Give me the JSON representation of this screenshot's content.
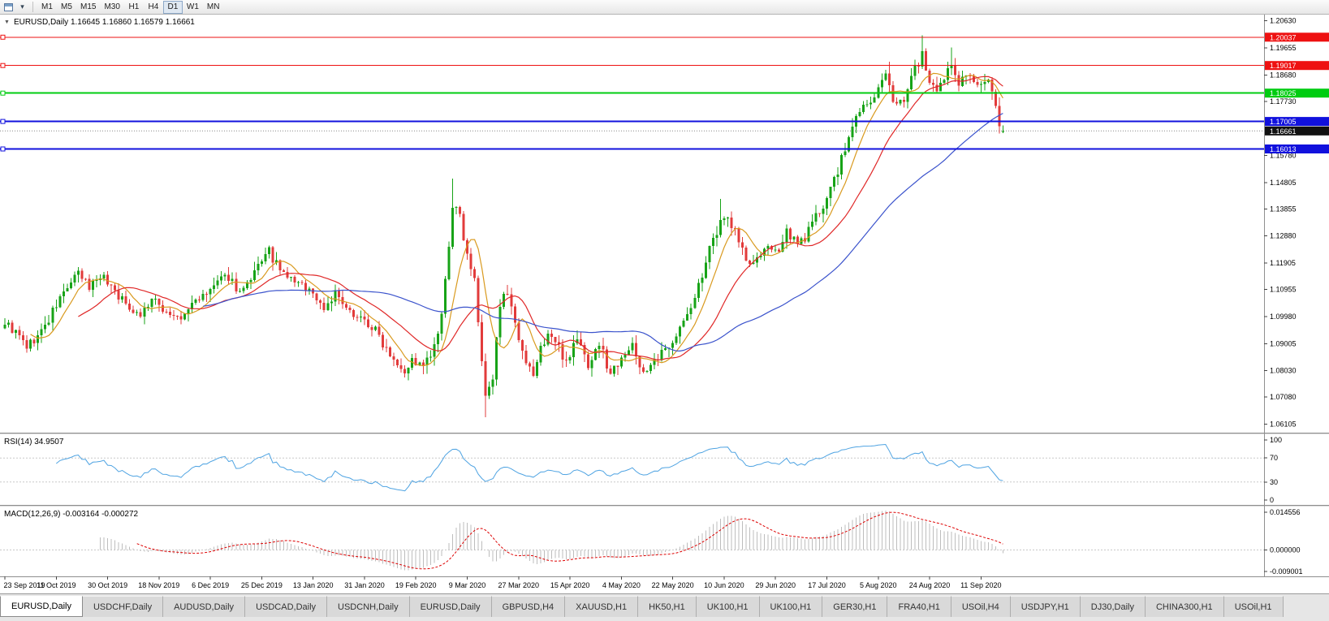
{
  "toolbar": {
    "icons": [
      {
        "name": "chart-window-icon",
        "glyph": ""
      },
      {
        "name": "menu-arrow-icon",
        "glyph": "▾"
      }
    ],
    "timeframes": [
      {
        "label": "M1",
        "active": false
      },
      {
        "label": "M5",
        "active": false
      },
      {
        "label": "M15",
        "active": false
      },
      {
        "label": "M30",
        "active": false
      },
      {
        "label": "H1",
        "active": false
      },
      {
        "label": "H4",
        "active": false
      },
      {
        "label": "D1",
        "active": true
      },
      {
        "label": "W1",
        "active": false
      },
      {
        "label": "MN",
        "active": false
      }
    ]
  },
  "chart": {
    "title": "EURUSD,Daily 1.16645 1.16860 1.16579 1.16661",
    "symbol": "EURUSD",
    "period": "Daily",
    "collapse_glyph": "▼"
  },
  "price_axis": {
    "range": {
      "min": 1.058,
      "max": 1.2085
    },
    "ticks": [
      {
        "label": "1.20630",
        "value": 1.2063
      },
      {
        "label": "1.19655",
        "value": 1.19655
      },
      {
        "label": "1.18680",
        "value": 1.1868
      },
      {
        "label": "1.17730",
        "value": 1.1773
      },
      {
        "label": "1.15780",
        "value": 1.1578
      },
      {
        "label": "1.14805",
        "value": 1.14805
      },
      {
        "label": "1.13855",
        "value": 1.13855
      },
      {
        "label": "1.12880",
        "value": 1.1288
      },
      {
        "label": "1.11905",
        "value": 1.11905
      },
      {
        "label": "1.10955",
        "value": 1.10955
      },
      {
        "label": "1.09980",
        "value": 1.0998
      },
      {
        "label": "1.09005",
        "value": 1.09005
      },
      {
        "label": "1.08030",
        "value": 1.0803
      },
      {
        "label": "1.07080",
        "value": 1.0708
      },
      {
        "label": "1.06105",
        "value": 1.06105
      }
    ]
  },
  "hlines": [
    {
      "value": 1.20037,
      "label": "1.20037",
      "color": "#ee1111",
      "width": 1
    },
    {
      "value": 1.19017,
      "label": "1.19017",
      "color": "#ee1111",
      "width": 1
    },
    {
      "value": 1.18025,
      "label": "1.18025",
      "color": "#00cc11",
      "width": 2
    },
    {
      "value": 1.17005,
      "label": "1.17005",
      "color": "#1111dd",
      "width": 2
    },
    {
      "value": 1.16013,
      "label": "1.16013",
      "color": "#1111dd",
      "width": 2
    }
  ],
  "current_price": {
    "value": 1.16661,
    "label": "1.16661",
    "color": "#111111"
  },
  "rsi": {
    "label": "RSI(14) 34.9507",
    "period": 14,
    "value": 34.9507,
    "levels": [
      {
        "label": "100",
        "value": 100,
        "dashed": false
      },
      {
        "label": "70",
        "value": 70,
        "dashed": true
      },
      {
        "label": "30",
        "value": 30,
        "dashed": true
      },
      {
        "label": "0",
        "value": 0,
        "dashed": false
      }
    ]
  },
  "macd": {
    "label": "MACD(12,26,9) -0.003164 -0.000272",
    "fast": 12,
    "slow": 26,
    "signal": 9,
    "main_value": -0.003164,
    "signal_value": -0.000272,
    "range": {
      "min": -0.009001,
      "max": 0.014556
    },
    "scale_labels": [
      "0.014556",
      "0.000000",
      "-0.009001"
    ]
  },
  "date_axis": {
    "bars_per_label": 14,
    "labels": [
      "23 Sep 2019",
      "11 Oct 2019",
      "30 Oct 2019",
      "18 Nov 2019",
      "6 Dec 2019",
      "25 Dec 2019",
      "13 Jan 2020",
      "31 Jan 2020",
      "19 Feb 2020",
      "9 Mar 2020",
      "27 Mar 2020",
      "15 Apr 2020",
      "4 May 2020",
      "22 May 2020",
      "10 Jun 2020",
      "29 Jun 2020",
      "17 Jul 2020",
      "5 Aug 2020",
      "24 Aug 2020",
      "11 Sep 2020"
    ]
  },
  "tabs": [
    {
      "label": "EURUSD,Daily",
      "active": true
    },
    {
      "label": "USDCHF,Daily",
      "active": false
    },
    {
      "label": "AUDUSD,Daily",
      "active": false
    },
    {
      "label": "USDCAD,Daily",
      "active": false
    },
    {
      "label": "USDCNH,Daily",
      "active": false
    },
    {
      "label": "EURUSD,Daily",
      "active": false
    },
    {
      "label": "GBPUSD,H4",
      "active": false
    },
    {
      "label": "XAUUSD,H1",
      "active": false
    },
    {
      "label": "HK50,H1",
      "active": false
    },
    {
      "label": "UK100,H1",
      "active": false
    },
    {
      "label": "UK100,H1",
      "active": false
    },
    {
      "label": "GER30,H1",
      "active": false
    },
    {
      "label": "FRA40,H1",
      "active": false
    },
    {
      "label": "USOil,H4",
      "active": false
    },
    {
      "label": "USDJPY,H1",
      "active": false
    },
    {
      "label": "DJ30,Daily",
      "active": false
    },
    {
      "label": "CHINA300,H1",
      "active": false
    },
    {
      "label": "USOil,H1",
      "active": false
    }
  ],
  "colors": {
    "candle_up": "#17a317",
    "candle_down": "#e23b3b",
    "ma_fast": "#d99a1f",
    "ma_mid": "#e02828",
    "ma_slow": "#3b53cc",
    "rsi_line": "#4ea3e2",
    "macd_hist": "#bdbdbd",
    "macd_signal": "#dd0000",
    "grid_dashed": "#c8c8c8",
    "separator": "#8f8f8f",
    "axis_text": "#000000"
  },
  "chart_data": {
    "type": "candlestick",
    "symbol": "EURUSD",
    "timeframe": "Daily",
    "bars_total": 273,
    "ohlc_last": {
      "open": 1.16645,
      "high": 1.1686,
      "low": 1.16579,
      "close": 1.16661
    },
    "moving_averages": [
      {
        "period": 8,
        "color_key": "ma_fast"
      },
      {
        "period": 21,
        "color_key": "ma_mid"
      },
      {
        "period": 55,
        "color_key": "ma_slow"
      }
    ],
    "noise_seed": 9,
    "anchors": [
      [
        0,
        1.0978
      ],
      [
        3,
        1.0938
      ],
      [
        6,
        1.089
      ],
      [
        9,
        1.0925
      ],
      [
        12,
        1.0985
      ],
      [
        14,
        1.104
      ],
      [
        17,
        1.1105
      ],
      [
        20,
        1.115
      ],
      [
        23,
        1.1105
      ],
      [
        26,
        1.115
      ],
      [
        29,
        1.111
      ],
      [
        33,
        1.104
      ],
      [
        37,
        1.1005
      ],
      [
        40,
        1.106
      ],
      [
        44,
        1.1015
      ],
      [
        48,
        1.0985
      ],
      [
        52,
        1.106
      ],
      [
        55,
        1.1075
      ],
      [
        58,
        1.1125
      ],
      [
        61,
        1.1145
      ],
      [
        64,
        1.1085
      ],
      [
        67,
        1.112
      ],
      [
        70,
        1.1205
      ],
      [
        72,
        1.123
      ],
      [
        75,
        1.116
      ],
      [
        79,
        1.1125
      ],
      [
        83,
        1.1095
      ],
      [
        87,
        1.103
      ],
      [
        90,
        1.108
      ],
      [
        93,
        1.102
      ],
      [
        97,
        1.0995
      ],
      [
        101,
        1.0945
      ],
      [
        105,
        1.087
      ],
      [
        109,
        1.0805
      ],
      [
        111,
        1.084
      ],
      [
        114,
        1.0815
      ],
      [
        117,
        1.088
      ],
      [
        119,
        1.099
      ],
      [
        121,
        1.125
      ],
      [
        122,
        1.14
      ],
      [
        124,
        1.135
      ],
      [
        126,
        1.123
      ],
      [
        128,
        1.112
      ],
      [
        129,
        1.098
      ],
      [
        131,
        1.07
      ],
      [
        133,
        1.077
      ],
      [
        135,
        1.105
      ],
      [
        136,
        1.11
      ],
      [
        138,
        1.102
      ],
      [
        140,
        1.09
      ],
      [
        142,
        1.082
      ],
      [
        144,
        1.079
      ],
      [
        146,
        1.088
      ],
      [
        148,
        1.094
      ],
      [
        150,
        1.0905
      ],
      [
        153,
        1.084
      ],
      [
        156,
        1.092
      ],
      [
        159,
        1.0825
      ],
      [
        162,
        1.09
      ],
      [
        165,
        1.079
      ],
      [
        168,
        1.086
      ],
      [
        171,
        1.0885
      ],
      [
        174,
        1.08
      ],
      [
        177,
        1.0825
      ],
      [
        180,
        1.088
      ],
      [
        182,
        1.092
      ],
      [
        185,
        1.0975
      ],
      [
        188,
        1.106
      ],
      [
        191,
        1.12
      ],
      [
        194,
        1.13
      ],
      [
        196,
        1.137
      ],
      [
        199,
        1.131
      ],
      [
        202,
        1.12
      ],
      [
        204,
        1.1175
      ],
      [
        207,
        1.125
      ],
      [
        210,
        1.122
      ],
      [
        213,
        1.131
      ],
      [
        216,
        1.125
      ],
      [
        219,
        1.1305
      ],
      [
        222,
        1.138
      ],
      [
        224,
        1.143
      ],
      [
        227,
        1.152
      ],
      [
        230,
        1.164
      ],
      [
        233,
        1.1745
      ],
      [
        236,
        1.177
      ],
      [
        238,
        1.1815
      ],
      [
        240,
        1.1865
      ],
      [
        242,
        1.1765
      ],
      [
        245,
        1.179
      ],
      [
        248,
        1.189
      ],
      [
        250,
        1.1945
      ],
      [
        252,
        1.1835
      ],
      [
        254,
        1.179
      ],
      [
        256,
        1.1855
      ],
      [
        258,
        1.1905
      ],
      [
        260,
        1.1845
      ],
      [
        262,
        1.1875
      ],
      [
        264,
        1.1835
      ],
      [
        266,
        1.1825
      ],
      [
        268,
        1.186
      ],
      [
        269,
        1.182
      ],
      [
        270,
        1.175
      ],
      [
        271,
        1.169
      ],
      [
        272,
        1.16661
      ]
    ],
    "extremes": [
      {
        "bar": 6,
        "low": 1.0879
      },
      {
        "bar": 109,
        "low": 1.0778
      },
      {
        "bar": 122,
        "high": 1.1495
      },
      {
        "bar": 131,
        "low": 1.0636
      },
      {
        "bar": 195,
        "high": 1.1422
      },
      {
        "bar": 241,
        "high": 1.1916
      },
      {
        "bar": 250,
        "high": 1.201
      },
      {
        "bar": 258,
        "high": 1.1966
      }
    ]
  }
}
